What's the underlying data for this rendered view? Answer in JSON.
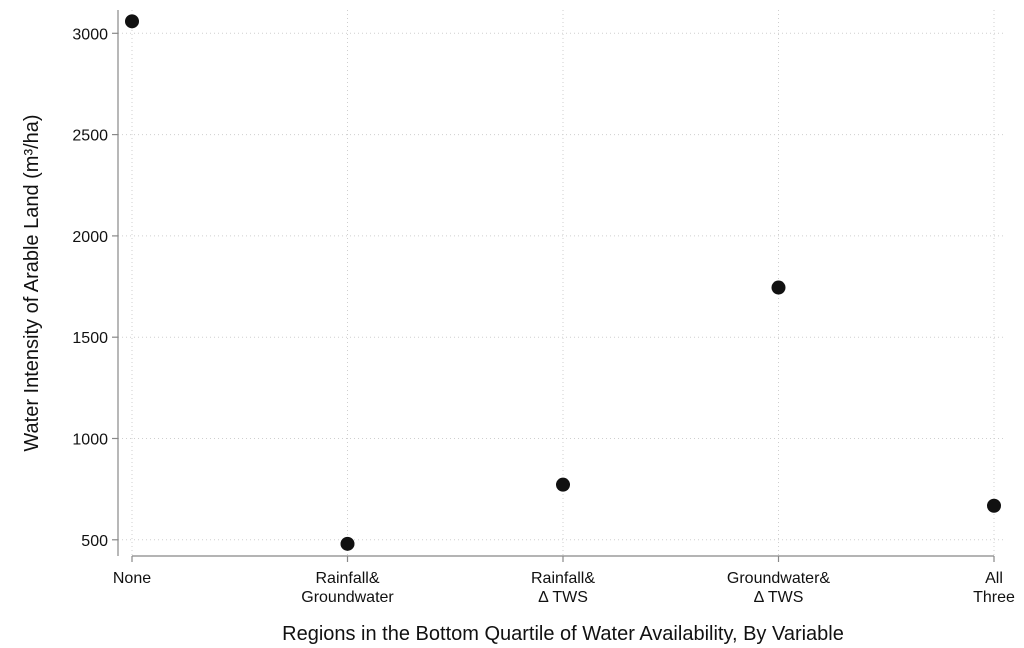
{
  "chart_data": {
    "type": "scatter",
    "x_label": "Regions in the Bottom Quartile of Water Availability, By Variable",
    "y_label": "Water Intensity of Arable Land (m³/ha)",
    "categories": [
      "None",
      "Rainfall&\nGroundwater",
      "Rainfall&\nΔ TWS",
      "Groundwater&\nΔ TWS",
      "All\nThree"
    ],
    "values": [
      3059,
      480,
      772,
      1745,
      668
    ],
    "color": "#111111",
    "ylim": [
      420,
      3115
    ],
    "yticks": [
      500,
      1000,
      1500,
      2000,
      2500,
      3000
    ],
    "grid": true
  }
}
